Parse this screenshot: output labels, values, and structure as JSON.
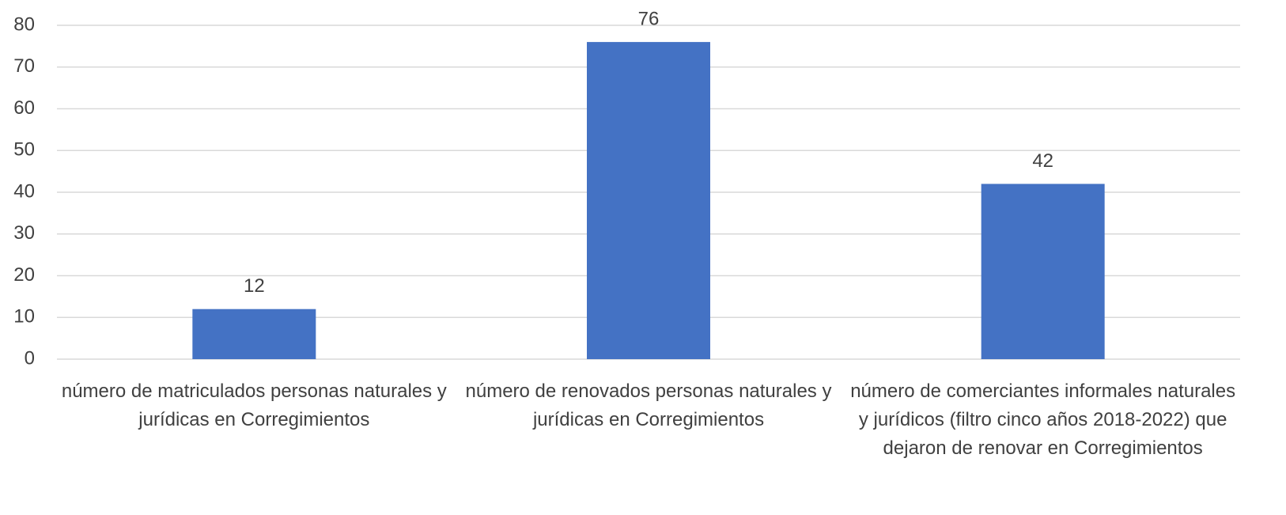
{
  "chart_data": {
    "type": "bar",
    "categories": [
      "número de matriculados personas naturales y jurídicas en Corregimientos",
      "número de renovados personas naturales y jurídicas en Corregimientos",
      "número de comerciantes informales naturales y jurídicos (filtro cinco años 2018-2022) que dejaron de renovar en Corregimientos"
    ],
    "values": [
      12,
      76,
      42
    ],
    "color": "#4472c4",
    "ylim": [
      0,
      80
    ],
    "yticks": [
      0,
      10,
      20,
      30,
      40,
      50,
      60,
      70,
      80
    ],
    "grid": true
  }
}
